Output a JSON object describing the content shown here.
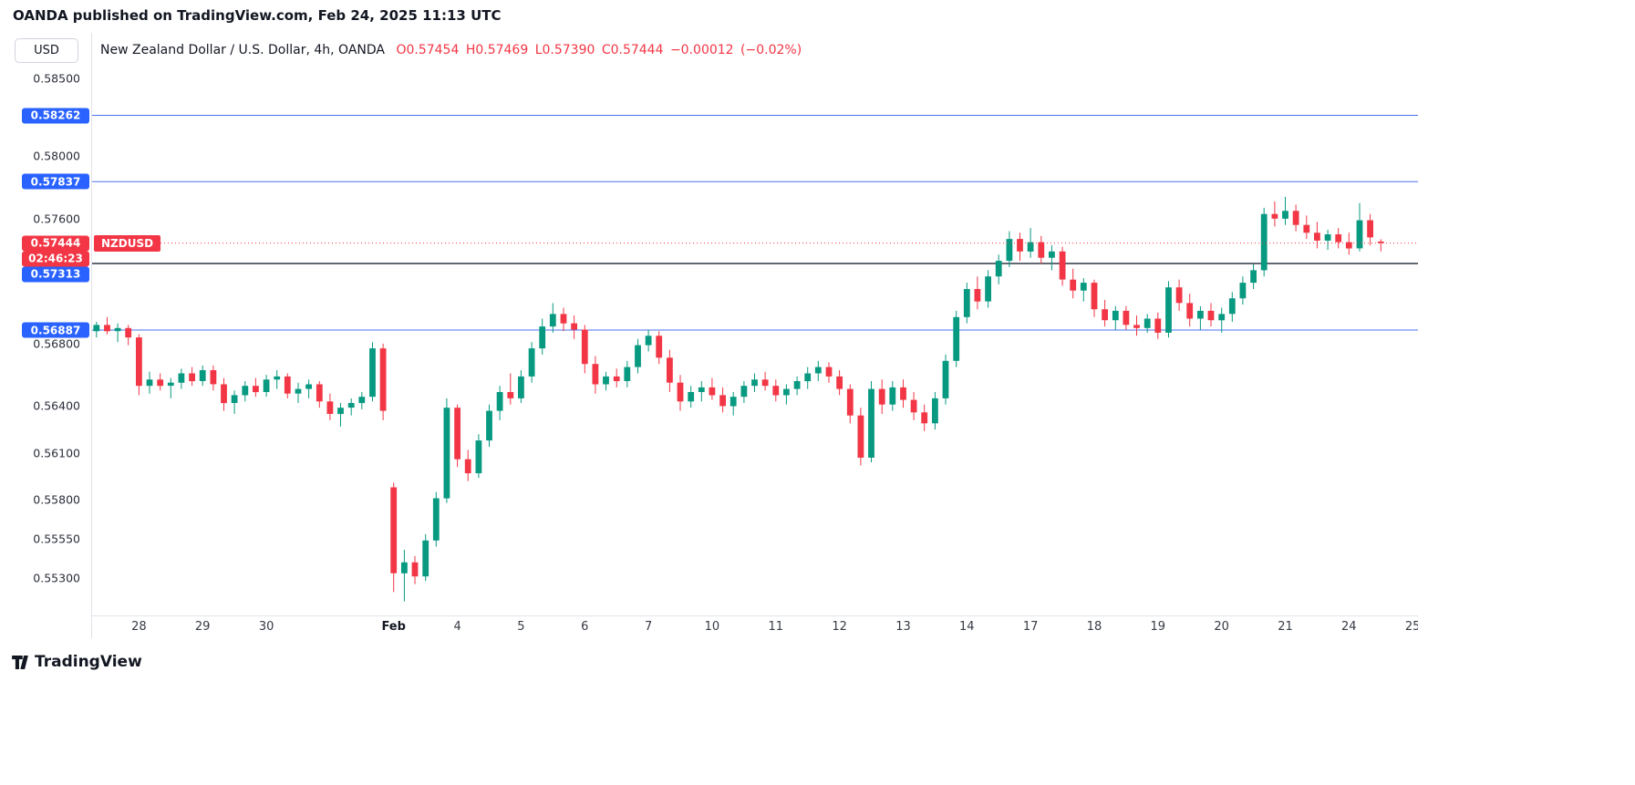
{
  "page": {
    "published_header": "OANDA published on TradingView.com, Feb 24, 2025 11:13 UTC",
    "footer_brand": "TradingView"
  },
  "chart": {
    "axis_currency": "USD",
    "symbol_title": "New Zealand Dollar / U.S. Dollar, 4h, OANDA",
    "ohlc_text": "O0.57454  H0.57469  L0.57390  C0.57444  −0.00012 (−0.02%)",
    "symbol_tag": "NZDUSD"
  },
  "chart_data": {
    "type": "candlestick",
    "symbol": "NZDUSD",
    "title": "New Zealand Dollar / U.S. Dollar, 4h, OANDA",
    "interval": "4h",
    "exchange": "OANDA",
    "current_ohlc": {
      "open": 0.57454,
      "high": 0.57469,
      "low": 0.5739,
      "close": 0.57444,
      "change": "−0.00012 (−0.02%)"
    },
    "ylim": [
      0.5506,
      0.5879
    ],
    "slots": 125,
    "colors": {
      "up": "#089981",
      "down": "#f23645",
      "badge_blue": "#2962ff",
      "badge_red": "#f23645",
      "line_blue": "#4a72f0",
      "line_dark": "#2f3646",
      "current_line": "#f23645"
    },
    "y_ticks": [
      {
        "label": "0.58500",
        "price": 0.585
      },
      {
        "label": "0.58000",
        "price": 0.58
      },
      {
        "label": "0.57600",
        "price": 0.576
      },
      {
        "label": "0.56800",
        "price": 0.568
      },
      {
        "label": "0.56400",
        "price": 0.564
      },
      {
        "label": "0.56100",
        "price": 0.561
      },
      {
        "label": "0.55800",
        "price": 0.558
      },
      {
        "label": "0.55550",
        "price": 0.5555
      },
      {
        "label": "0.55300",
        "price": 0.553
      }
    ],
    "levels": [
      {
        "label": "0.58262",
        "price": 0.58262,
        "color": "#4a72f0",
        "width": 1
      },
      {
        "label": "0.57837",
        "price": 0.57837,
        "color": "#4a72f0",
        "width": 1
      },
      {
        "label": "0.57313",
        "price": 0.57313,
        "color": "#2f3646",
        "width": 1.5
      },
      {
        "label": "0.56887",
        "price": 0.56887,
        "color": "#4a72f0",
        "width": 1
      }
    ],
    "current_price": {
      "label": "0.57444",
      "price": 0.57444,
      "countdown": "02:46:23"
    },
    "x_labels": [
      {
        "label": "28",
        "index": 4
      },
      {
        "label": "29",
        "index": 10
      },
      {
        "label": "30",
        "index": 16
      },
      {
        "label": "Feb",
        "index": 28,
        "bold": true
      },
      {
        "label": "4",
        "index": 34
      },
      {
        "label": "5",
        "index": 40
      },
      {
        "label": "6",
        "index": 46
      },
      {
        "label": "7",
        "index": 52
      },
      {
        "label": "10",
        "index": 58
      },
      {
        "label": "11",
        "index": 64
      },
      {
        "label": "12",
        "index": 70
      },
      {
        "label": "13",
        "index": 76
      },
      {
        "label": "14",
        "index": 82
      },
      {
        "label": "17",
        "index": 88
      },
      {
        "label": "18",
        "index": 94
      },
      {
        "label": "19",
        "index": 100
      },
      {
        "label": "20",
        "index": 106
      },
      {
        "label": "21",
        "index": 112
      },
      {
        "label": "24",
        "index": 118
      },
      {
        "label": "25",
        "index": 124
      }
    ],
    "candles": [
      [
        0.5688,
        0.5694,
        0.5684,
        0.5692
      ],
      [
        0.5692,
        0.5697,
        0.5686,
        0.5688
      ],
      [
        0.5688,
        0.5693,
        0.5681,
        0.569
      ],
      [
        0.569,
        0.5692,
        0.5679,
        0.5684
      ],
      [
        0.5684,
        0.5686,
        0.5647,
        0.5653
      ],
      [
        0.5653,
        0.5662,
        0.5648,
        0.5657
      ],
      [
        0.5657,
        0.5661,
        0.565,
        0.5653
      ],
      [
        0.5653,
        0.5658,
        0.5645,
        0.5655
      ],
      [
        0.5655,
        0.5664,
        0.5651,
        0.5661
      ],
      [
        0.5661,
        0.5665,
        0.5653,
        0.5656
      ],
      [
        0.5656,
        0.5666,
        0.5653,
        0.5663
      ],
      [
        0.5663,
        0.5666,
        0.565,
        0.5654
      ],
      [
        0.5654,
        0.5658,
        0.5637,
        0.5642
      ],
      [
        0.5642,
        0.565,
        0.5635,
        0.5647
      ],
      [
        0.5647,
        0.5656,
        0.5643,
        0.5653
      ],
      [
        0.5653,
        0.5658,
        0.5646,
        0.5649
      ],
      [
        0.5649,
        0.566,
        0.5646,
        0.5657
      ],
      [
        0.5657,
        0.5663,
        0.5651,
        0.5659
      ],
      [
        0.5659,
        0.5661,
        0.5645,
        0.5648
      ],
      [
        0.5648,
        0.5655,
        0.5642,
        0.5651
      ],
      [
        0.5651,
        0.5657,
        0.5645,
        0.5654
      ],
      [
        0.5654,
        0.5656,
        0.5639,
        0.5643
      ],
      [
        0.5643,
        0.5648,
        0.5631,
        0.5635
      ],
      [
        0.5635,
        0.5642,
        0.5627,
        0.5639
      ],
      [
        0.5639,
        0.5645,
        0.5634,
        0.5642
      ],
      [
        0.5642,
        0.5649,
        0.5638,
        0.5646
      ],
      [
        0.5646,
        0.5681,
        0.5643,
        0.5677
      ],
      [
        0.5677,
        0.568,
        0.5631,
        0.5637
      ],
      [
        0.5588,
        0.5591,
        0.5521,
        0.5533
      ],
      [
        0.5533,
        0.5548,
        0.5515,
        0.554
      ],
      [
        0.554,
        0.5544,
        0.5526,
        0.5531
      ],
      [
        0.5531,
        0.5558,
        0.5528,
        0.5554
      ],
      [
        0.5554,
        0.5585,
        0.555,
        0.5581
      ],
      [
        0.5581,
        0.5645,
        0.5578,
        0.5639
      ],
      [
        0.5639,
        0.5641,
        0.5601,
        0.5606
      ],
      [
        0.5606,
        0.5612,
        0.5592,
        0.5597
      ],
      [
        0.5597,
        0.5622,
        0.5594,
        0.5618
      ],
      [
        0.5618,
        0.5641,
        0.5614,
        0.5637
      ],
      [
        0.5637,
        0.5653,
        0.5631,
        0.5649
      ],
      [
        0.5649,
        0.5661,
        0.5641,
        0.5645
      ],
      [
        0.5645,
        0.5663,
        0.5642,
        0.5659
      ],
      [
        0.5659,
        0.5681,
        0.5655,
        0.5677
      ],
      [
        0.5677,
        0.5696,
        0.5673,
        0.5691
      ],
      [
        0.5691,
        0.5706,
        0.5687,
        0.5699
      ],
      [
        0.5699,
        0.5703,
        0.5688,
        0.5693
      ],
      [
        0.5693,
        0.5698,
        0.5683,
        0.5689
      ],
      [
        0.5689,
        0.5692,
        0.5661,
        0.5667
      ],
      [
        0.5667,
        0.5672,
        0.5648,
        0.5654
      ],
      [
        0.5654,
        0.5662,
        0.565,
        0.5659
      ],
      [
        0.5659,
        0.5664,
        0.5652,
        0.5656
      ],
      [
        0.5656,
        0.5669,
        0.5652,
        0.5665
      ],
      [
        0.5665,
        0.5683,
        0.5661,
        0.5679
      ],
      [
        0.5679,
        0.5689,
        0.5675,
        0.5685
      ],
      [
        0.5685,
        0.5688,
        0.5667,
        0.5671
      ],
      [
        0.5671,
        0.5676,
        0.5649,
        0.5655
      ],
      [
        0.5655,
        0.566,
        0.5637,
        0.5643
      ],
      [
        0.5643,
        0.5653,
        0.5639,
        0.5649
      ],
      [
        0.5649,
        0.5656,
        0.5643,
        0.5652
      ],
      [
        0.5652,
        0.5658,
        0.5644,
        0.5647
      ],
      [
        0.5647,
        0.5652,
        0.5636,
        0.564
      ],
      [
        0.564,
        0.5649,
        0.5634,
        0.5646
      ],
      [
        0.5646,
        0.5656,
        0.5642,
        0.5653
      ],
      [
        0.5653,
        0.5661,
        0.5649,
        0.5657
      ],
      [
        0.5657,
        0.5662,
        0.565,
        0.5653
      ],
      [
        0.5653,
        0.5657,
        0.5643,
        0.5647
      ],
      [
        0.5647,
        0.5654,
        0.5641,
        0.5651
      ],
      [
        0.5651,
        0.5659,
        0.5647,
        0.5656
      ],
      [
        0.5656,
        0.5665,
        0.5651,
        0.5661
      ],
      [
        0.5661,
        0.5669,
        0.5656,
        0.5665
      ],
      [
        0.5665,
        0.5668,
        0.5655,
        0.5659
      ],
      [
        0.5659,
        0.5663,
        0.5647,
        0.5651
      ],
      [
        0.5651,
        0.5654,
        0.5629,
        0.5634
      ],
      [
        0.5634,
        0.5639,
        0.5602,
        0.5607
      ],
      [
        0.5607,
        0.5656,
        0.5604,
        0.5651
      ],
      [
        0.5651,
        0.5657,
        0.5635,
        0.5641
      ],
      [
        0.5641,
        0.5656,
        0.5637,
        0.5652
      ],
      [
        0.5652,
        0.5657,
        0.5639,
        0.5644
      ],
      [
        0.5644,
        0.5649,
        0.5631,
        0.5636
      ],
      [
        0.5636,
        0.5641,
        0.5624,
        0.5629
      ],
      [
        0.5629,
        0.5649,
        0.5625,
        0.5645
      ],
      [
        0.5645,
        0.5673,
        0.5641,
        0.5669
      ],
      [
        0.5669,
        0.5701,
        0.5665,
        0.5697
      ],
      [
        0.5697,
        0.5719,
        0.5693,
        0.5715
      ],
      [
        0.5715,
        0.5723,
        0.5702,
        0.5707
      ],
      [
        0.5707,
        0.5727,
        0.5703,
        0.5723
      ],
      [
        0.5723,
        0.5737,
        0.5718,
        0.5733
      ],
      [
        0.5733,
        0.5752,
        0.5729,
        0.5747
      ],
      [
        0.5747,
        0.5751,
        0.5733,
        0.5739
      ],
      [
        0.5739,
        0.5754,
        0.5735,
        0.5745
      ],
      [
        0.5745,
        0.5749,
        0.5731,
        0.5735
      ],
      [
        0.5735,
        0.5743,
        0.5727,
        0.5739
      ],
      [
        0.5739,
        0.5742,
        0.5717,
        0.5721
      ],
      [
        0.5721,
        0.5728,
        0.5709,
        0.5714
      ],
      [
        0.5714,
        0.5722,
        0.5707,
        0.5719
      ],
      [
        0.5719,
        0.5721,
        0.5697,
        0.5702
      ],
      [
        0.5702,
        0.5708,
        0.5691,
        0.5695
      ],
      [
        0.5695,
        0.5704,
        0.5689,
        0.5701
      ],
      [
        0.5701,
        0.5704,
        0.5689,
        0.5692
      ],
      [
        0.5692,
        0.5698,
        0.5685,
        0.569
      ],
      [
        0.569,
        0.5699,
        0.5687,
        0.5696
      ],
      [
        0.5696,
        0.57,
        0.5683,
        0.5687
      ],
      [
        0.5687,
        0.572,
        0.5684,
        0.5716
      ],
      [
        0.5716,
        0.5721,
        0.5701,
        0.5706
      ],
      [
        0.5706,
        0.5712,
        0.5691,
        0.5696
      ],
      [
        0.5696,
        0.5704,
        0.5689,
        0.5701
      ],
      [
        0.5701,
        0.5706,
        0.5691,
        0.5695
      ],
      [
        0.5695,
        0.5703,
        0.5687,
        0.5699
      ],
      [
        0.5699,
        0.5713,
        0.5694,
        0.5709
      ],
      [
        0.5709,
        0.5723,
        0.5705,
        0.5719
      ],
      [
        0.5719,
        0.5731,
        0.5715,
        0.5727
      ],
      [
        0.5727,
        0.5767,
        0.5723,
        0.5763
      ],
      [
        0.5763,
        0.5771,
        0.5755,
        0.576
      ],
      [
        0.576,
        0.5774,
        0.5756,
        0.5765
      ],
      [
        0.5765,
        0.5769,
        0.5752,
        0.5756
      ],
      [
        0.5756,
        0.5762,
        0.5747,
        0.5751
      ],
      [
        0.5751,
        0.5758,
        0.5741,
        0.5746
      ],
      [
        0.5746,
        0.5753,
        0.574,
        0.575
      ],
      [
        0.575,
        0.5754,
        0.5741,
        0.5745
      ],
      [
        0.5745,
        0.5751,
        0.5737,
        0.5741
      ],
      [
        0.5741,
        0.577,
        0.5739,
        0.5759
      ],
      [
        0.5759,
        0.5763,
        0.5743,
        0.5748
      ],
      [
        0.57454,
        0.57469,
        0.5739,
        0.57444
      ]
    ]
  }
}
